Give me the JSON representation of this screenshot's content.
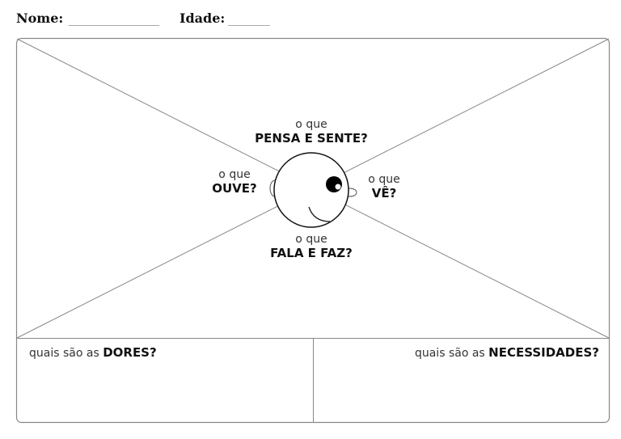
{
  "header": {
    "name_label": "Nome:",
    "age_label": "Idade:"
  },
  "map": {
    "think": {
      "prefix": "o que",
      "label": "PENSA E SENTE?"
    },
    "hear": {
      "prefix": "o que",
      "label": "OUVE?"
    },
    "see": {
      "prefix": "o que",
      "label": "VÊ?"
    },
    "say": {
      "prefix": "o que",
      "label": "FALA E FAZ?"
    }
  },
  "bottom": {
    "pains": {
      "prefix": "quais são as",
      "label": "DORES?"
    },
    "needs": {
      "prefix": "quais são as",
      "label": "NECESSIDADES?"
    }
  }
}
